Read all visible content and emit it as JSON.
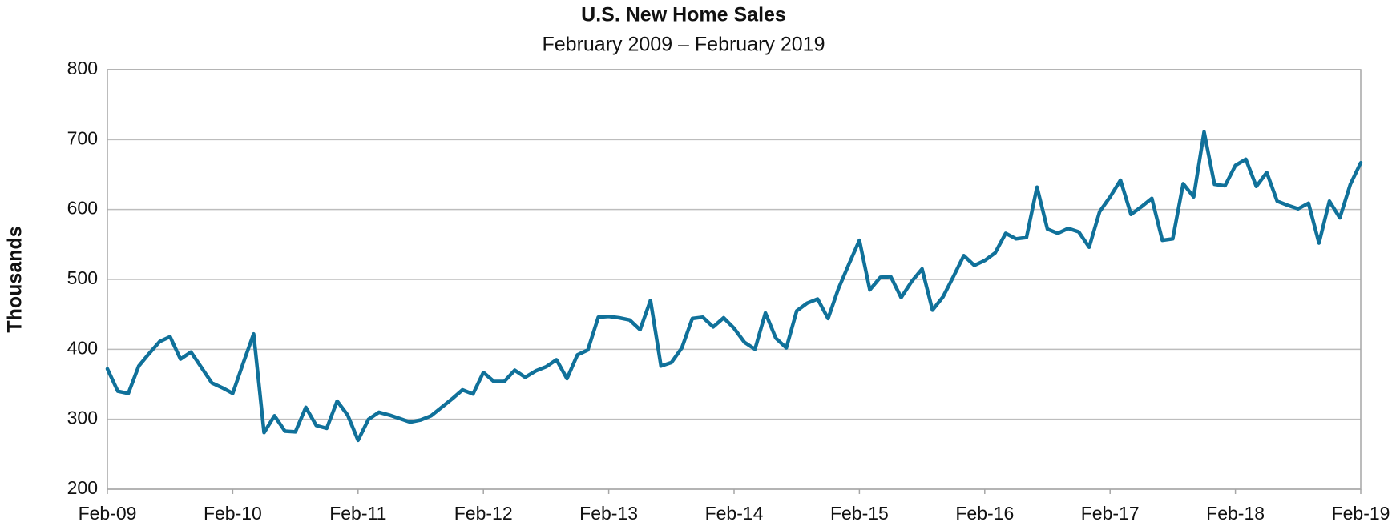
{
  "chart_data": {
    "type": "line",
    "title": "U.S. New Home Sales",
    "subtitle": "February 2009 – February 2019",
    "y_label": "Thousands",
    "categories": [
      "Feb-09",
      null,
      null,
      null,
      null,
      null,
      null,
      null,
      null,
      null,
      null,
      null,
      "Feb-10",
      null,
      null,
      null,
      null,
      null,
      null,
      null,
      null,
      null,
      null,
      null,
      "Feb-11",
      null,
      null,
      null,
      null,
      null,
      null,
      null,
      null,
      null,
      null,
      null,
      "Feb-12",
      null,
      null,
      null,
      null,
      null,
      null,
      null,
      null,
      null,
      null,
      null,
      "Feb-13",
      null,
      null,
      null,
      null,
      null,
      null,
      null,
      null,
      null,
      null,
      null,
      "Feb-14",
      null,
      null,
      null,
      null,
      null,
      null,
      null,
      null,
      null,
      null,
      null,
      "Feb-15",
      null,
      null,
      null,
      null,
      null,
      null,
      null,
      null,
      null,
      null,
      null,
      "Feb-16",
      null,
      null,
      null,
      null,
      null,
      null,
      null,
      null,
      null,
      null,
      null,
      "Feb-17",
      null,
      null,
      null,
      null,
      null,
      null,
      null,
      null,
      null,
      null,
      null,
      "Feb-18",
      null,
      null,
      null,
      null,
      null,
      null,
      null,
      null,
      null,
      null,
      null,
      "Feb-19"
    ],
    "series": [
      {
        "color": "#10719a",
        "values": [
          372,
          340,
          337,
          376,
          394,
          411,
          418,
          386,
          396,
          374,
          352,
          345,
          337,
          380,
          422,
          281,
          305,
          283,
          282,
          317,
          291,
          287,
          326,
          306,
          270,
          300,
          310,
          306,
          301,
          296,
          299,
          305,
          317,
          329,
          342,
          336,
          367,
          354,
          354,
          370,
          360,
          369,
          375,
          385,
          358,
          392,
          399,
          446,
          447,
          445,
          442,
          428,
          470,
          376,
          381,
          402,
          444,
          446,
          432,
          445,
          430,
          410,
          400,
          452,
          416,
          402,
          455,
          466,
          472,
          444,
          487,
          522,
          556,
          485,
          503,
          504,
          474,
          497,
          515,
          456,
          475,
          504,
          534,
          520,
          527,
          538,
          566,
          558,
          560,
          632,
          572,
          566,
          573,
          568,
          546,
          597,
          618,
          642,
          593,
          604,
          616,
          556,
          558,
          637,
          618,
          711,
          636,
          634,
          663,
          672,
          633,
          653,
          612,
          606,
          601,
          609,
          552,
          612,
          588,
          636,
          667
        ]
      }
    ],
    "ylim": [
      200,
      800
    ],
    "yticks": [
      200,
      300,
      400,
      500,
      600,
      700,
      800
    ],
    "grid": true
  }
}
